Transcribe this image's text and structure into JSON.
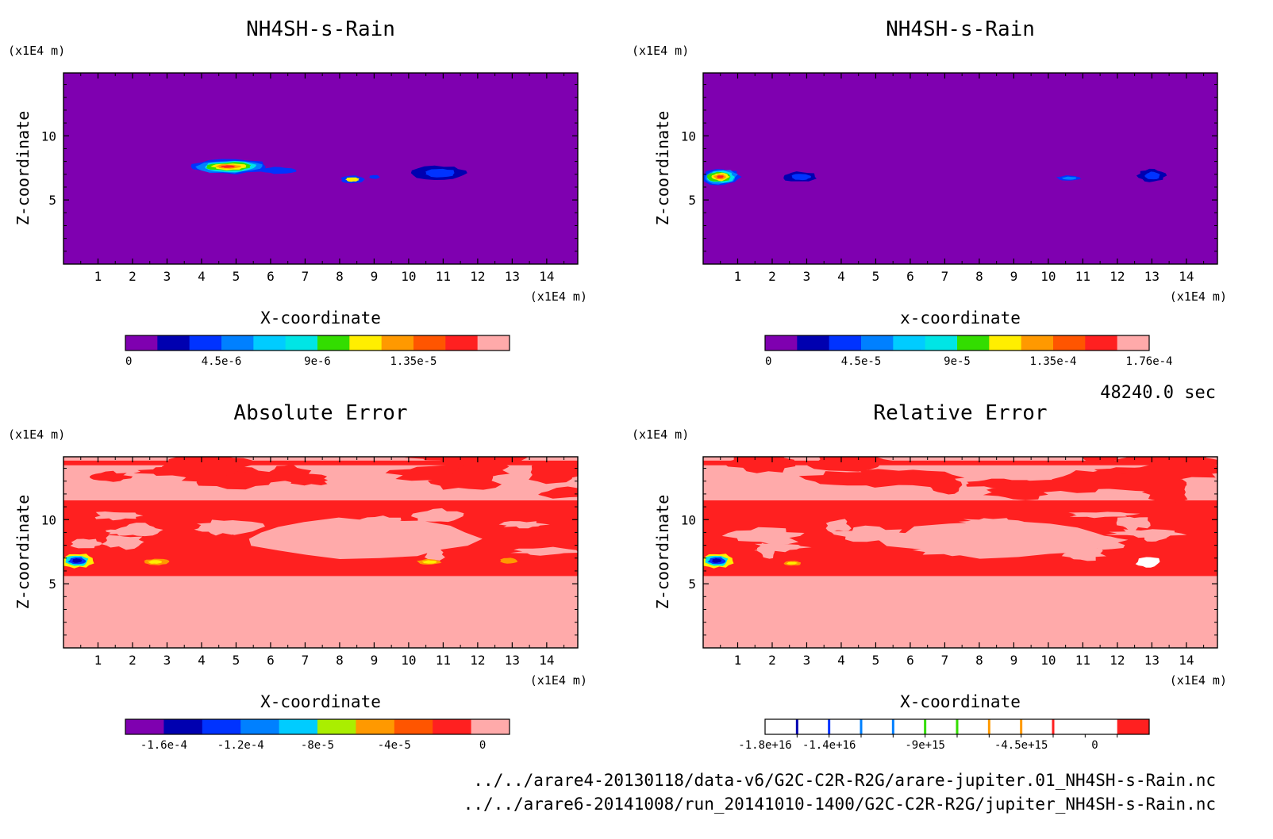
{
  "header": {
    "time_label": "48240.0 sec"
  },
  "footer": {
    "file_1": "../../arare4-20130118/data-v6/G2C-C2R-R2G/arare-jupiter.01_NH4SH-s-Rain.nc",
    "file_2": "../../arare6-20141008/run_20141010-1400/G2C-C2R-R2G/jupiter_NH4SH-s-Rain.nc"
  },
  "colors": {
    "purple": "#7f00b0",
    "navy": "#0000b0",
    "blue": "#0033ff",
    "azure": "#0080ff",
    "cyan": "#00ccff",
    "aqua": "#00e5e5",
    "green": "#33dd00",
    "yellowgreen": "#aaee00",
    "yellow": "#ffee00",
    "orange": "#ff9900",
    "orangered": "#ff5500",
    "red": "#ff2020",
    "pink": "#ffaaaa",
    "white": "#ffffff"
  },
  "chart_data": [
    {
      "type": "heatmap",
      "title": "NH4SH-s-Rain",
      "xlabel": "X-coordinate",
      "ylabel": "Z-coordinate",
      "x_unit": "(x1E4 m)",
      "y_unit": "(x1E4 m)",
      "xlim": [
        0,
        14.9
      ],
      "ylim": [
        0,
        14.9
      ],
      "xticks": [
        1,
        2,
        3,
        4,
        5,
        6,
        7,
        8,
        9,
        10,
        11,
        12,
        13,
        14
      ],
      "yticks": [
        5,
        10
      ],
      "background": "purple",
      "features": [
        {
          "x": 4.8,
          "z": 7.6,
          "rx": 1.1,
          "rz": 0.55,
          "levels": [
            "blue",
            "azure",
            "aqua",
            "green",
            "yellow",
            "orange",
            "red"
          ]
        },
        {
          "x": 6.2,
          "z": 7.3,
          "rx": 0.5,
          "rz": 0.25,
          "levels": [
            "blue"
          ]
        },
        {
          "x": 8.4,
          "z": 6.6,
          "rx": 0.35,
          "rz": 0.3,
          "levels": [
            "blue",
            "yellow"
          ]
        },
        {
          "x": 9.0,
          "z": 6.8,
          "rx": 0.15,
          "rz": 0.15,
          "levels": [
            "blue"
          ]
        },
        {
          "x": 10.9,
          "z": 7.1,
          "rx": 0.8,
          "rz": 0.55,
          "levels": [
            "navy",
            "blue"
          ]
        }
      ],
      "colorbar": {
        "colors": [
          "purple",
          "navy",
          "blue",
          "azure",
          "cyan",
          "aqua",
          "green",
          "yellow",
          "orange",
          "orangered",
          "red",
          "pink"
        ],
        "labels": [
          "0",
          "4.5e-6",
          "9e-6",
          "1.35e-5"
        ],
        "label_at": [
          0,
          3,
          6,
          9
        ]
      }
    },
    {
      "type": "heatmap",
      "title": "NH4SH-s-Rain",
      "xlabel": "x-coordinate",
      "ylabel": "Z-coordinate",
      "x_unit": "(x1E4 m)",
      "y_unit": "(x1E4 m)",
      "xlim": [
        0,
        14.9
      ],
      "ylim": [
        0,
        14.9
      ],
      "xticks": [
        1,
        2,
        3,
        4,
        5,
        6,
        7,
        8,
        9,
        10,
        11,
        12,
        13,
        14
      ],
      "yticks": [
        5,
        10
      ],
      "background": "purple",
      "features": [
        {
          "x": 0.5,
          "z": 6.8,
          "rx": 0.55,
          "rz": 0.65,
          "levels": [
            "blue",
            "azure",
            "aqua",
            "green",
            "yellow",
            "orange",
            "red"
          ]
        },
        {
          "x": 2.8,
          "z": 6.8,
          "rx": 0.5,
          "rz": 0.4,
          "levels": [
            "navy",
            "blue"
          ]
        },
        {
          "x": 10.6,
          "z": 6.7,
          "rx": 0.35,
          "rz": 0.2,
          "levels": [
            "blue",
            "azure"
          ]
        },
        {
          "x": 13.0,
          "z": 6.9,
          "rx": 0.4,
          "rz": 0.5,
          "levels": [
            "navy",
            "blue"
          ]
        }
      ],
      "colorbar": {
        "colors": [
          "purple",
          "navy",
          "blue",
          "azure",
          "cyan",
          "aqua",
          "green",
          "yellow",
          "orange",
          "orangered",
          "red",
          "pink"
        ],
        "labels": [
          "0",
          "4.5e-5",
          "9e-5",
          "1.35e-4",
          "1.76e-4"
        ],
        "label_at": [
          0,
          3,
          6,
          9,
          12
        ]
      }
    },
    {
      "type": "heatmap",
      "title": "Absolute Error",
      "xlabel": "X-coordinate",
      "ylabel": "Z-coordinate",
      "x_unit": "(x1E4 m)",
      "y_unit": "(x1E4 m)",
      "xlim": [
        0,
        14.9
      ],
      "ylim": [
        0,
        14.9
      ],
      "xticks": [
        1,
        2,
        3,
        4,
        5,
        6,
        7,
        8,
        9,
        10,
        11,
        12,
        13,
        14
      ],
      "yticks": [
        5,
        10
      ],
      "background": "pink",
      "red_band_z": [
        5.6,
        11.5
      ],
      "features": [
        {
          "x": 0.4,
          "z": 6.8,
          "rx": 0.45,
          "rz": 0.55,
          "levels": [
            "yellow",
            "aqua",
            "blue",
            "navy"
          ]
        },
        {
          "x": 2.7,
          "z": 6.7,
          "rx": 0.35,
          "rz": 0.25,
          "levels": [
            "orange",
            "yellow"
          ]
        },
        {
          "x": 10.6,
          "z": 6.7,
          "rx": 0.35,
          "rz": 0.22,
          "levels": [
            "orange",
            "yellow"
          ]
        },
        {
          "x": 12.9,
          "z": 6.8,
          "rx": 0.25,
          "rz": 0.2,
          "levels": [
            "orange"
          ]
        }
      ],
      "colorbar": {
        "colors": [
          "purple",
          "navy",
          "blue",
          "azure",
          "cyan",
          "yellowgreen",
          "orange",
          "orangered",
          "red",
          "pink"
        ],
        "labels": [
          "-1.6e-4",
          "-1.2e-4",
          "-8e-5",
          "-4e-5",
          "0"
        ],
        "label_at": [
          1,
          3,
          5,
          7,
          9.3
        ]
      }
    },
    {
      "type": "heatmap",
      "title": "Relative Error",
      "xlabel": "X-coordinate",
      "ylabel": "Z-coordinate",
      "x_unit": "(x1E4 m)",
      "y_unit": "(x1E4 m)",
      "xlim": [
        0,
        14.9
      ],
      "ylim": [
        0,
        14.9
      ],
      "xticks": [
        1,
        2,
        3,
        4,
        5,
        6,
        7,
        8,
        9,
        10,
        11,
        12,
        13,
        14
      ],
      "yticks": [
        5,
        10
      ],
      "background": "pink",
      "red_band_z": [
        5.6,
        11.5
      ],
      "features": [
        {
          "x": 0.4,
          "z": 6.8,
          "rx": 0.45,
          "rz": 0.55,
          "levels": [
            "yellow",
            "aqua",
            "blue",
            "navy"
          ]
        },
        {
          "x": 2.6,
          "z": 6.6,
          "rx": 0.25,
          "rz": 0.18,
          "levels": [
            "orange",
            "yellow"
          ]
        },
        {
          "x": 12.9,
          "z": 6.7,
          "rx": 0.35,
          "rz": 0.4,
          "levels": [
            "white"
          ]
        }
      ],
      "colorbar": {
        "style": "lines",
        "cells": 12,
        "line_colors": [
          "navy",
          "blue",
          "azure",
          "azure",
          "green",
          "green",
          "orange",
          "orange",
          "red"
        ],
        "last_color": "red",
        "labels": [
          "-1.8e+16",
          "-1.4e+16",
          "-9e+15",
          "-4.5e+15",
          "0"
        ],
        "label_at": [
          0,
          2,
          5,
          8,
          10.3
        ]
      }
    }
  ]
}
